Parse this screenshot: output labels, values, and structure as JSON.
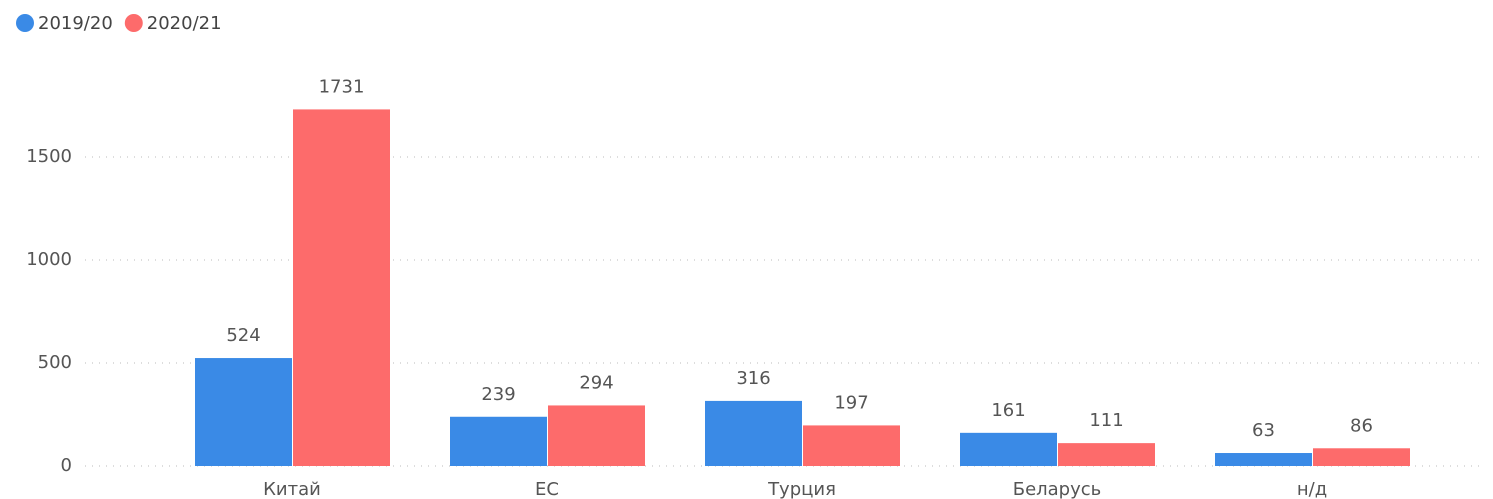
{
  "chart_data": {
    "type": "bar",
    "categories": [
      "Китай",
      "ЕС",
      "Турция",
      "Беларусь",
      "н/д"
    ],
    "series": [
      {
        "name": "2019/20",
        "color": "#3a8ae6",
        "values": [
          524,
          239,
          316,
          161,
          63
        ]
      },
      {
        "name": "2020/21",
        "color": "#fd6b6b",
        "values": [
          1731,
          294,
          197,
          111,
          86
        ]
      }
    ],
    "ylim": [
      0,
      1800
    ],
    "yticks": [
      0,
      500,
      1000,
      1500
    ],
    "grid": true,
    "legend": "top-left"
  }
}
